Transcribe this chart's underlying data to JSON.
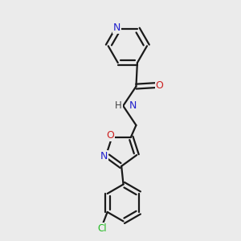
{
  "background_color": "#ebebeb",
  "bond_color": "#1a1a1a",
  "atom_colors": {
    "N": "#2020cc",
    "O": "#cc2020",
    "Cl": "#22bb22",
    "C": "#1a1a1a",
    "H": "#444444"
  },
  "figsize": [
    3.0,
    3.0
  ],
  "dpi": 100
}
